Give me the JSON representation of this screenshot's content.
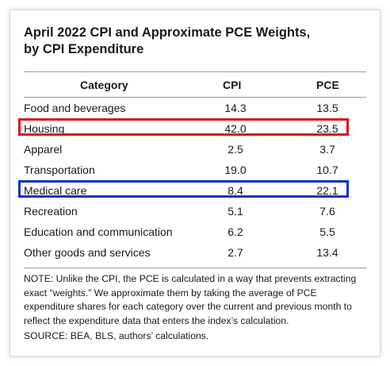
{
  "title_line1": "April 2022 CPI and Approximate PCE Weights,",
  "title_line2": "by CPI Expenditure",
  "columns": {
    "category": "Category",
    "cpi": "CPI",
    "pce": "PCE"
  },
  "rows": [
    {
      "category": "Food and beverages",
      "cpi": "14.3",
      "pce": "13.5"
    },
    {
      "category": "Housing",
      "cpi": "42.0",
      "pce": "23.5"
    },
    {
      "category": "Apparel",
      "cpi": "2.5",
      "pce": "3.7"
    },
    {
      "category": "Transportation",
      "cpi": "19.0",
      "pce": "10.7"
    },
    {
      "category": "Medical care",
      "cpi": "8.4",
      "pce": "22.1"
    },
    {
      "category": "Recreation",
      "cpi": "5.1",
      "pce": "7.6"
    },
    {
      "category": "Education and communication",
      "cpi": "6.2",
      "pce": "5.5"
    },
    {
      "category": "Other goods and services",
      "cpi": "2.7",
      "pce": "13.4"
    }
  ],
  "highlights": {
    "housing_color": "#d7141e",
    "medical_color": "#1330c8"
  },
  "note": "NOTE: Unlike the CPI, the PCE is calculated in a way that prevents extracting exact “weights.” We approximate them by taking the average of PCE expenditure shares for each category over the current and previous month to reflect the expenditure data that enters the index’s calculation.",
  "source": "SOURCE: BEA, BLS, authors’ calculations."
}
